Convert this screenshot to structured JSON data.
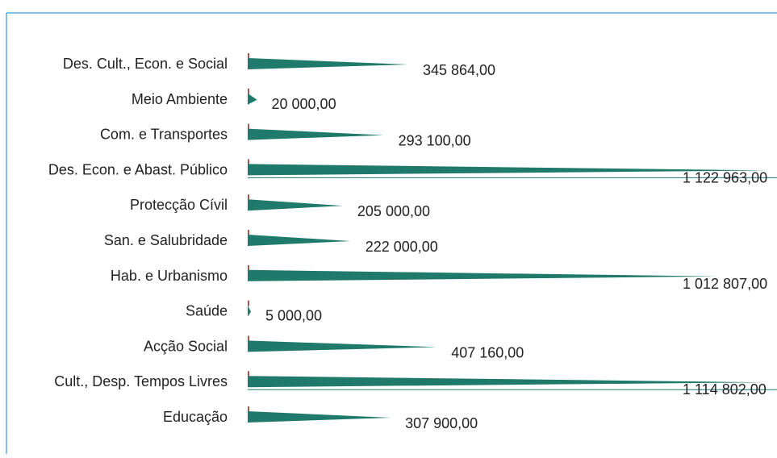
{
  "chart_data": {
    "type": "bar",
    "orientation": "horizontal",
    "bar_shape": "cone",
    "categories": [
      "Des. Cult., Econ. e Social",
      "Meio Ambiente",
      "Com. e Transportes",
      "Des. Econ. e Abast. Público",
      "Protecção Cívil",
      "San. e Salubridade",
      "Hab. e Urbanismo",
      "Saúde",
      "Acção Social",
      "Cult., Desp. Tempos Livres",
      "Educação"
    ],
    "values": [
      345864,
      20000,
      293100,
      1122963,
      205000,
      222000,
      1012807,
      5000,
      407160,
      1114802,
      307900
    ],
    "value_labels": [
      "345 864,00",
      "20 000,00",
      "293 100,00",
      "1 122 963,00",
      "205 000,00",
      "222 000,00",
      "1 012 807,00",
      "5 000,00",
      "407 160,00",
      "1 114 802,00",
      "307 900,00"
    ],
    "title": "",
    "xlabel": "",
    "ylabel": "",
    "xlim": [
      0,
      1130000
    ],
    "grid": false,
    "legend": "none"
  },
  "colors": {
    "bar": "#1f7a6b",
    "bar_edge": "#a05a52",
    "frame": "#3a9ad0",
    "text": "#222222",
    "value_line": "#1f7a6b"
  }
}
